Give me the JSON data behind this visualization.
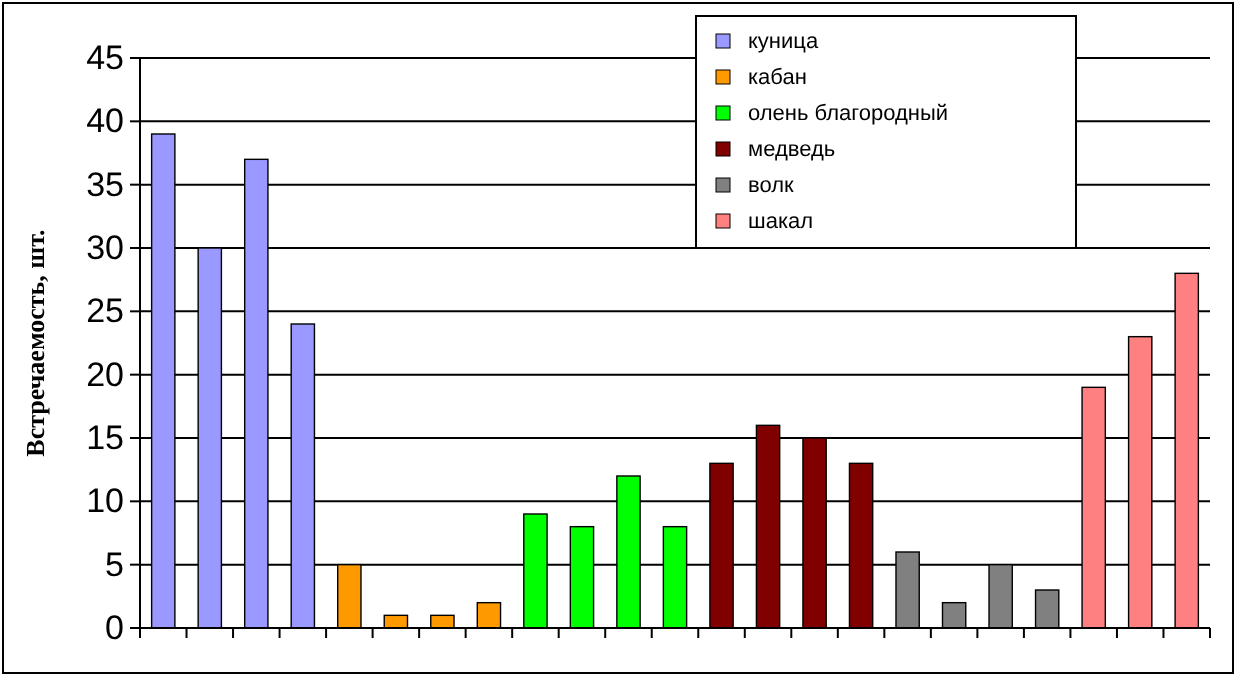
{
  "chart_data": {
    "type": "bar",
    "ylabel": "Встречаемость, шт.",
    "categories": [
      null,
      null,
      null,
      null,
      null,
      null,
      null,
      null,
      null,
      null,
      null,
      null,
      null,
      null,
      null,
      null,
      null,
      null,
      null,
      null,
      null,
      null,
      null
    ],
    "series": [
      {
        "name": "куница",
        "color": "#9999ff",
        "values": [
          39,
          30,
          37,
          24,
          null,
          null,
          null,
          null,
          null,
          null,
          null,
          null,
          null,
          null,
          null,
          null,
          null,
          null,
          null,
          null,
          null,
          null,
          null
        ]
      },
      {
        "name": "кабан",
        "color": "#ff9900",
        "values": [
          null,
          null,
          null,
          null,
          5,
          1,
          1,
          2,
          null,
          null,
          null,
          null,
          null,
          null,
          null,
          null,
          null,
          null,
          null,
          null,
          null,
          null,
          null
        ]
      },
      {
        "name": "олень благородный",
        "color": "#00ff00",
        "values": [
          null,
          null,
          null,
          null,
          null,
          null,
          null,
          null,
          9,
          8,
          12,
          8,
          null,
          null,
          null,
          null,
          null,
          null,
          null,
          null,
          null,
          null,
          null
        ]
      },
      {
        "name": "медведь",
        "color": "#800000",
        "values": [
          null,
          null,
          null,
          null,
          null,
          null,
          null,
          null,
          null,
          null,
          null,
          null,
          13,
          16,
          15,
          13,
          null,
          null,
          null,
          null,
          null,
          null,
          null
        ]
      },
      {
        "name": "волк",
        "color": "#808080",
        "values": [
          null,
          null,
          null,
          null,
          null,
          null,
          null,
          null,
          null,
          null,
          null,
          null,
          null,
          null,
          null,
          null,
          6,
          2,
          5,
          3,
          null,
          null,
          null
        ]
      },
      {
        "name": "шакал",
        "color": "#ff8080",
        "values": [
          null,
          null,
          null,
          null,
          null,
          null,
          null,
          null,
          null,
          null,
          null,
          null,
          null,
          null,
          null,
          null,
          null,
          null,
          null,
          null,
          19,
          23,
          28
        ]
      }
    ],
    "ylim": [
      0,
      45
    ],
    "yticks": [
      0,
      5,
      10,
      15,
      20,
      25,
      30,
      35,
      40,
      45
    ],
    "grid": "y",
    "legend": "top right"
  }
}
